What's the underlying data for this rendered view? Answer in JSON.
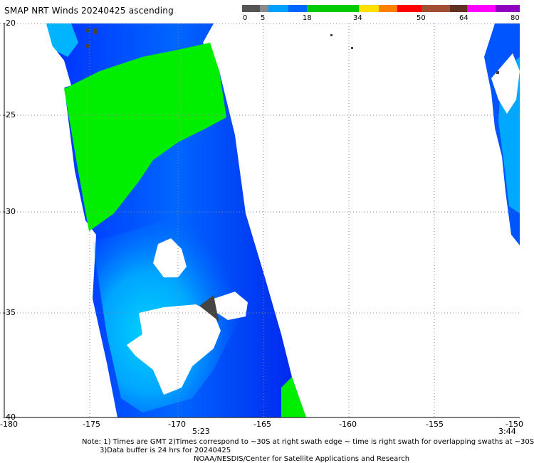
{
  "title": "SMAP NRT Winds 20240425 ascending",
  "colorbar": {
    "ticks": [
      "0",
      "5",
      "18",
      "34",
      "50",
      "64",
      "80"
    ],
    "colors": [
      "#555555",
      "#8a8a8a",
      "#00a0ff",
      "#00d8ff",
      "#0030ff",
      "#00e000",
      "#00e000",
      "#f0ff00",
      "#ff8000",
      "#ff2000",
      "#ff0000",
      "#a05030",
      "#603020",
      "#ff00ff",
      "#9000c0"
    ]
  },
  "axes": {
    "lat_labels": [
      "-20",
      "-25",
      "-30",
      "-35",
      "-40"
    ],
    "lon_labels": [
      "-180",
      "-175",
      "-170",
      "-165",
      "-160",
      "-155",
      "-150"
    ]
  },
  "swath_times": {
    "left": "5:23",
    "right": "3:44"
  },
  "footer": {
    "line1": "Note: 1) Times are GMT 2)Times correspond to ~30S at right swath edge ~ time is right swath for overlapping swaths at ~30S",
    "line2": "3)Data buffer is 24 hrs for 20240425",
    "line3": "NOAA/NESDIS/Center for Satellite Applications and Research"
  },
  "colors": {
    "blue_dark": "#0022ff",
    "blue_mid": "#0066ff",
    "cyan": "#00ccff",
    "green": "#00ee00",
    "land_gray": "#444444"
  }
}
